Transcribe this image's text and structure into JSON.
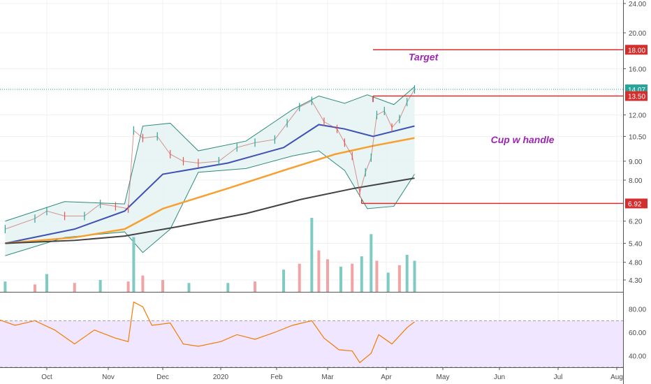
{
  "chart_data": {
    "type": "candlestick",
    "price_axis": {
      "scale": "log",
      "ticks": [
        "24.00",
        "20.00",
        "18.00",
        "16.00",
        "14.07",
        "13.50",
        "12.00",
        "10.50",
        "9.00",
        "8.00",
        "6.92",
        "6.20",
        "5.40",
        "4.80",
        "4.30"
      ],
      "range": [
        4.0,
        25.0
      ]
    },
    "time_axis": {
      "labels": [
        {
          "text": "Oct",
          "date": "2019-10-01"
        },
        {
          "text": "Nov",
          "date": "2019-11-01"
        },
        {
          "text": "Dec",
          "date": "2019-12-01"
        },
        {
          "text": "2020",
          "date": "2020-01-01"
        },
        {
          "text": "Feb",
          "date": "2020-02-01"
        },
        {
          "text": "Mar",
          "date": "2020-03-01"
        },
        {
          "text": "Apr",
          "date": "2020-04-01"
        },
        {
          "text": "May",
          "date": "2020-05-01"
        },
        {
          "text": "Jun",
          "date": "2020-06-01"
        },
        {
          "text": "Jul",
          "date": "2020-07-01"
        },
        {
          "text": "Aug",
          "date": "2020-08-01"
        }
      ]
    },
    "price_series": [
      {
        "date": "2019-09-10",
        "close": 5.9
      },
      {
        "date": "2019-09-25",
        "close": 6.3
      },
      {
        "date": "2019-10-01",
        "close": 6.6
      },
      {
        "date": "2019-10-10",
        "close": 6.4
      },
      {
        "date": "2019-10-20",
        "close": 6.4
      },
      {
        "date": "2019-10-28",
        "close": 6.9
      },
      {
        "date": "2019-11-05",
        "close": 6.8
      },
      {
        "date": "2019-11-12",
        "close": 6.7
      },
      {
        "date": "2019-11-15",
        "close": 10.9
      },
      {
        "date": "2019-11-20",
        "close": 10.4
      },
      {
        "date": "2019-11-28",
        "close": 10.5
      },
      {
        "date": "2019-12-05",
        "close": 9.4
      },
      {
        "date": "2019-12-12",
        "close": 9.0
      },
      {
        "date": "2019-12-20",
        "close": 8.9
      },
      {
        "date": "2019-12-31",
        "close": 9.0
      },
      {
        "date": "2020-01-10",
        "close": 9.8
      },
      {
        "date": "2020-01-20",
        "close": 10.1
      },
      {
        "date": "2020-01-31",
        "close": 10.3
      },
      {
        "date": "2020-02-07",
        "close": 11.4
      },
      {
        "date": "2020-02-14",
        "close": 12.6
      },
      {
        "date": "2020-02-21",
        "close": 13.1
      },
      {
        "date": "2020-02-28",
        "close": 11.5
      },
      {
        "date": "2020-03-06",
        "close": 11.0
      },
      {
        "date": "2020-03-10",
        "close": 10.1
      },
      {
        "date": "2020-03-14",
        "close": 9.3
      },
      {
        "date": "2020-03-18",
        "close": 7.4
      },
      {
        "date": "2020-03-21",
        "close": 8.4
      },
      {
        "date": "2020-03-24",
        "close": 9.2
      },
      {
        "date": "2020-03-27",
        "close": 12.0
      },
      {
        "date": "2020-03-31",
        "close": 12.3
      },
      {
        "date": "2020-04-04",
        "close": 11.1
      },
      {
        "date": "2020-04-08",
        "close": 11.7
      },
      {
        "date": "2020-04-12",
        "close": 13.0
      },
      {
        "date": "2020-04-16",
        "close": 14.07
      }
    ],
    "moving_averages": [
      {
        "color": "#3f51b5",
        "points": [
          [
            "2019-09-10",
            5.4
          ],
          [
            "2019-10-15",
            5.9
          ],
          [
            "2019-11-10",
            6.6
          ],
          [
            "2019-12-01",
            8.3
          ],
          [
            "2020-01-05",
            8.9
          ],
          [
            "2020-02-05",
            9.8
          ],
          [
            "2020-02-25",
            11.3
          ],
          [
            "2020-03-10",
            11.0
          ],
          [
            "2020-03-25",
            10.5
          ],
          [
            "2020-04-16",
            11.2
          ]
        ]
      },
      {
        "color": "#f5a030",
        "points": [
          [
            "2019-09-10",
            5.4
          ],
          [
            "2019-10-15",
            5.6
          ],
          [
            "2019-11-10",
            5.9
          ],
          [
            "2019-12-01",
            6.7
          ],
          [
            "2020-01-05",
            7.6
          ],
          [
            "2020-02-05",
            8.5
          ],
          [
            "2020-03-05",
            9.4
          ],
          [
            "2020-03-25",
            9.9
          ],
          [
            "2020-04-16",
            10.4
          ]
        ]
      },
      {
        "color": "#424242",
        "points": [
          [
            "2019-09-10",
            5.4
          ],
          [
            "2019-10-15",
            5.5
          ],
          [
            "2019-11-10",
            5.65
          ],
          [
            "2019-12-10",
            6.0
          ],
          [
            "2020-01-15",
            6.5
          ],
          [
            "2020-02-15",
            7.1
          ],
          [
            "2020-03-15",
            7.6
          ],
          [
            "2020-04-16",
            8.1
          ]
        ]
      }
    ],
    "bollinger": {
      "upper": [
        [
          "2019-09-10",
          6.2
        ],
        [
          "2019-10-10",
          7.0
        ],
        [
          "2019-11-10",
          6.9
        ],
        [
          "2019-11-20",
          11.2
        ],
        [
          "2019-12-05",
          11.4
        ],
        [
          "2019-12-20",
          9.6
        ],
        [
          "2020-01-15",
          10.2
        ],
        [
          "2020-02-10",
          12.4
        ],
        [
          "2020-02-25",
          13.5
        ],
        [
          "2020-03-10",
          12.9
        ],
        [
          "2020-03-22",
          13.6
        ],
        [
          "2020-04-05",
          12.8
        ],
        [
          "2020-04-16",
          14.3
        ]
      ],
      "lower": [
        [
          "2019-09-10",
          5.0
        ],
        [
          "2019-10-10",
          5.6
        ],
        [
          "2019-11-10",
          5.8
        ],
        [
          "2019-11-20",
          5.1
        ],
        [
          "2019-12-05",
          5.9
        ],
        [
          "2019-12-20",
          8.4
        ],
        [
          "2020-01-15",
          8.6
        ],
        [
          "2020-02-10",
          9.3
        ],
        [
          "2020-02-25",
          9.6
        ],
        [
          "2020-03-10",
          8.5
        ],
        [
          "2020-03-22",
          6.7
        ],
        [
          "2020-04-05",
          6.8
        ],
        [
          "2020-04-16",
          8.3
        ]
      ]
    },
    "levels": [
      {
        "value": 18.0,
        "label": "18.00",
        "color": "#d32f2f",
        "from": "2020-03-25"
      },
      {
        "value": 13.5,
        "label": "13.50",
        "color": "#d32f2f",
        "from": "2020-03-25"
      },
      {
        "value": 6.92,
        "label": "6.92",
        "color": "#d32f2f",
        "from": "2020-03-19"
      },
      {
        "value": 14.07,
        "label": "14.07",
        "color": "#26a69a",
        "dotted": true
      }
    ],
    "annotations": [
      {
        "text": "Target",
        "date": "2020-04-01",
        "value": 17.2
      },
      {
        "text": "Cup w handle",
        "date": "2020-05-15",
        "value": 10.3
      }
    ],
    "volume": {
      "range": [
        0,
        100
      ],
      "bars": [
        {
          "date": "2019-09-10",
          "value": 14,
          "up": true
        },
        {
          "date": "2019-09-25",
          "value": 10,
          "up": false
        },
        {
          "date": "2019-10-01",
          "value": 24,
          "up": true
        },
        {
          "date": "2019-10-15",
          "value": 12,
          "up": false
        },
        {
          "date": "2019-10-28",
          "value": 16,
          "up": true
        },
        {
          "date": "2019-11-12",
          "value": 14,
          "up": false
        },
        {
          "date": "2019-11-15",
          "value": 74,
          "up": true
        },
        {
          "date": "2019-11-20",
          "value": 22,
          "up": false
        },
        {
          "date": "2019-12-01",
          "value": 16,
          "up": false
        },
        {
          "date": "2019-12-15",
          "value": 12,
          "up": true
        },
        {
          "date": "2020-01-05",
          "value": 12,
          "up": true
        },
        {
          "date": "2020-01-20",
          "value": 14,
          "up": false
        },
        {
          "date": "2020-02-05",
          "value": 30,
          "up": true
        },
        {
          "date": "2020-02-14",
          "value": 38,
          "up": false
        },
        {
          "date": "2020-02-21",
          "value": 100,
          "up": true
        },
        {
          "date": "2020-02-25",
          "value": 56,
          "up": false
        },
        {
          "date": "2020-03-01",
          "value": 44,
          "up": false
        },
        {
          "date": "2020-03-08",
          "value": 34,
          "up": true
        },
        {
          "date": "2020-03-14",
          "value": 38,
          "up": false
        },
        {
          "date": "2020-03-19",
          "value": 48,
          "up": true
        },
        {
          "date": "2020-03-24",
          "value": 78,
          "up": true
        },
        {
          "date": "2020-03-27",
          "value": 42,
          "up": false
        },
        {
          "date": "2020-04-02",
          "value": 26,
          "up": true
        },
        {
          "date": "2020-04-08",
          "value": 36,
          "up": false
        },
        {
          "date": "2020-04-12",
          "value": 50,
          "up": true
        },
        {
          "date": "2020-04-16",
          "value": 42,
          "up": true
        }
      ]
    },
    "rsi": {
      "ticks": [
        "80.00",
        "60.00",
        "40.00"
      ],
      "range": [
        30,
        90
      ],
      "band": [
        70,
        30
      ],
      "points": [
        [
          "2019-09-05",
          72
        ],
        [
          "2019-09-15",
          66
        ],
        [
          "2019-09-25",
          70
        ],
        [
          "2019-10-05",
          62
        ],
        [
          "2019-10-15",
          50
        ],
        [
          "2019-10-25",
          62
        ],
        [
          "2019-11-05",
          55
        ],
        [
          "2019-11-12",
          52
        ],
        [
          "2019-11-15",
          86
        ],
        [
          "2019-11-20",
          82
        ],
        [
          "2019-11-25",
          66
        ],
        [
          "2019-12-05",
          68
        ],
        [
          "2019-12-12",
          50
        ],
        [
          "2019-12-20",
          48
        ],
        [
          "2020-01-01",
          52
        ],
        [
          "2020-01-10",
          58
        ],
        [
          "2020-01-20",
          54
        ],
        [
          "2020-01-31",
          60
        ],
        [
          "2020-02-10",
          66
        ],
        [
          "2020-02-21",
          70
        ],
        [
          "2020-02-28",
          55
        ],
        [
          "2020-03-07",
          45
        ],
        [
          "2020-03-14",
          44
        ],
        [
          "2020-03-18",
          34
        ],
        [
          "2020-03-24",
          42
        ],
        [
          "2020-03-28",
          58
        ],
        [
          "2020-04-04",
          50
        ],
        [
          "2020-04-12",
          64
        ],
        [
          "2020-04-16",
          69
        ]
      ]
    },
    "grid": true
  }
}
